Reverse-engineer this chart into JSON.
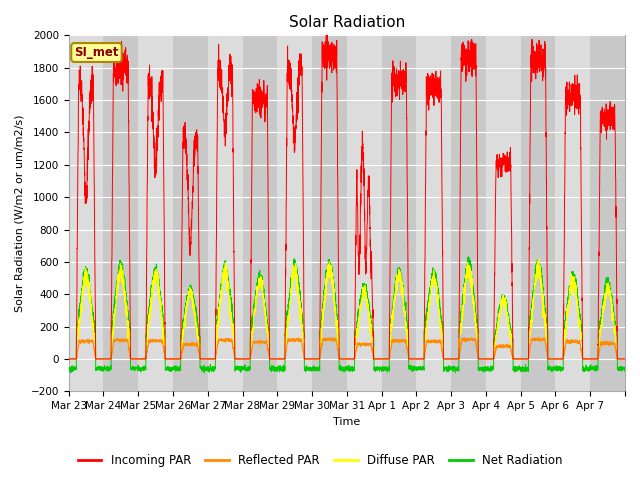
{
  "title": "Solar Radiation",
  "ylabel": "Solar Radiation (W/m2 or um/m2/s)",
  "xlabel": "Time",
  "ylim": [
    -200,
    2000
  ],
  "yticks": [
    -200,
    0,
    200,
    400,
    600,
    800,
    1000,
    1200,
    1400,
    1600,
    1800,
    2000
  ],
  "x_labels": [
    "Mar 23",
    "Mar 24",
    "Mar 25",
    "Mar 26",
    "Mar 27",
    "Mar 28",
    "Mar 29",
    "Mar 30",
    "Mar 31",
    "Apr 1",
    "Apr 2",
    "Apr 3",
    "Apr 4",
    "Apr 5",
    "Apr 6",
    "Apr 7"
  ],
  "colors": {
    "incoming": "#FF0000",
    "reflected": "#FF8C00",
    "diffuse": "#FFFF00",
    "net": "#00CC00"
  },
  "legend_labels": [
    "Incoming PAR",
    "Reflected PAR",
    "Diffuse PAR",
    "Net Radiation"
  ],
  "station_label": "SI_met",
  "bg_light": "#DCDCDC",
  "bg_dark": "#C8C8C8",
  "grid_color": "#FFFFFF",
  "title_fontsize": 11,
  "label_fontsize": 8,
  "tick_fontsize": 7.5
}
